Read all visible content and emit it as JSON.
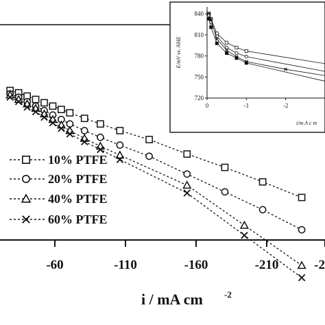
{
  "chart_data": [
    {
      "type": "line",
      "title": "",
      "xlabel": "i / mA cm",
      "xlabel_sup": "-2",
      "ylabel": "",
      "x_ticks": [
        "-60",
        "-110",
        "-160",
        "-210",
        "-2"
      ],
      "xlim": [
        -10,
        -260
      ],
      "ylim": [
        650,
        850
      ],
      "grid": false,
      "legend_placement": "bottom-left",
      "series": [
        {
          "name": "10% PTFE",
          "marker": "square",
          "x": [
            -7,
            -14,
            -21,
            -28,
            -35,
            -42,
            -49,
            -56,
            -68,
            -81,
            -97,
            -121,
            -152,
            -183,
            -214,
            -246
          ],
          "y": [
            818,
            816,
            813,
            810,
            807,
            804,
            801,
            798,
            793,
            788,
            782,
            774,
            761,
            749,
            736,
            722
          ]
        },
        {
          "name": "20% PTFE",
          "marker": "circle",
          "x": [
            -7,
            -14,
            -21,
            -28,
            -35,
            -42,
            -49,
            -56,
            -68,
            -81,
            -97,
            -121,
            -152,
            -183,
            -214,
            -246
          ],
          "y": [
            815,
            812,
            808,
            804,
            800,
            796,
            792,
            788,
            782,
            776,
            769,
            759,
            743,
            727,
            711,
            693
          ]
        },
        {
          "name": "40% PTFE",
          "marker": "triangle",
          "x": [
            -7,
            -14,
            -21,
            -28,
            -35,
            -42,
            -49,
            -56,
            -68,
            -81,
            -97,
            -152,
            -199,
            -246
          ],
          "y": [
            814,
            810,
            806,
            802,
            797,
            792,
            787,
            782,
            775,
            768,
            760,
            733,
            697,
            661
          ]
        },
        {
          "name": "60% PTFE",
          "marker": "x",
          "x": [
            -7,
            -14,
            -21,
            -28,
            -35,
            -42,
            -49,
            -56,
            -68,
            -81,
            -97,
            -152,
            -199,
            -246
          ],
          "y": [
            812,
            808,
            803,
            799,
            794,
            789,
            784,
            779,
            772,
            765,
            756,
            726,
            688,
            650
          ]
        }
      ]
    },
    {
      "type": "line",
      "title": "",
      "xlabel": "i/m A c m",
      "ylabel": "E/mV vs. NHE",
      "x_ticks": [
        "0",
        "-1",
        "-2"
      ],
      "y_ticks": [
        "720",
        "750",
        "780",
        "810",
        "840"
      ],
      "xlim": [
        0,
        -3
      ],
      "ylim": [
        720,
        850
      ],
      "grid": false,
      "series": [
        {
          "marker": "square",
          "x": [
            -0.05,
            -0.1,
            -0.25,
            -0.5,
            -0.75,
            -1.0,
            -3.0
          ],
          "y": [
            840,
            833,
            812,
            799,
            792,
            787,
            769
          ]
        },
        {
          "marker": "circle",
          "x": [
            -0.05,
            -0.1,
            -0.25,
            -0.5,
            -0.75,
            -1.0,
            -3.0
          ],
          "y": [
            838,
            828,
            808,
            792,
            784,
            779,
            758
          ]
        },
        {
          "marker": "x",
          "x": [
            -0.05,
            -0.1,
            -0.25,
            -0.5,
            -0.75,
            -1.0,
            -2.0,
            -3.0
          ],
          "y": [
            841,
            832,
            804,
            788,
            779,
            772,
            761,
            752
          ]
        },
        {
          "marker": "filled-square",
          "x": [
            -0.05,
            -0.1,
            -0.25,
            -0.5,
            -0.75,
            -1.0,
            -3.0
          ],
          "y": [
            833,
            821,
            798,
            784,
            777,
            770,
            744
          ]
        }
      ]
    }
  ]
}
